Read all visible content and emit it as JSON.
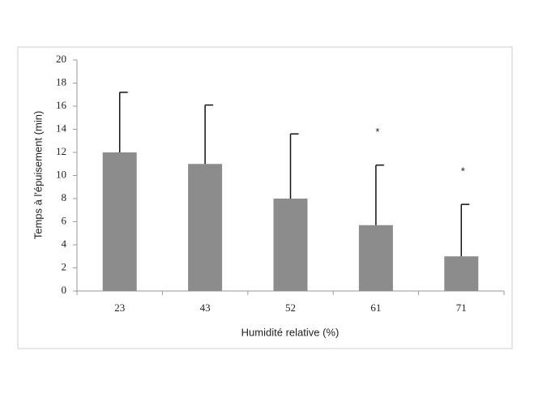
{
  "chart_data": {
    "type": "bar",
    "x_label": "Humidité relative (%)",
    "y_label": "Temps à l'épuisement (min)",
    "categories": [
      "23",
      "43",
      "52",
      "61",
      "71"
    ],
    "values": [
      12,
      11,
      8,
      5.7,
      3
    ],
    "errors": [
      5.2,
      5.1,
      5.6,
      5.2,
      4.5
    ],
    "significance_markers": [
      null,
      null,
      null,
      "*",
      "*"
    ],
    "color": "#8c8c8c",
    "ylim": [
      0,
      20
    ],
    "yticks": [
      0,
      2,
      4,
      6,
      8,
      10,
      12,
      14,
      16,
      18,
      20
    ],
    "grid": false
  }
}
